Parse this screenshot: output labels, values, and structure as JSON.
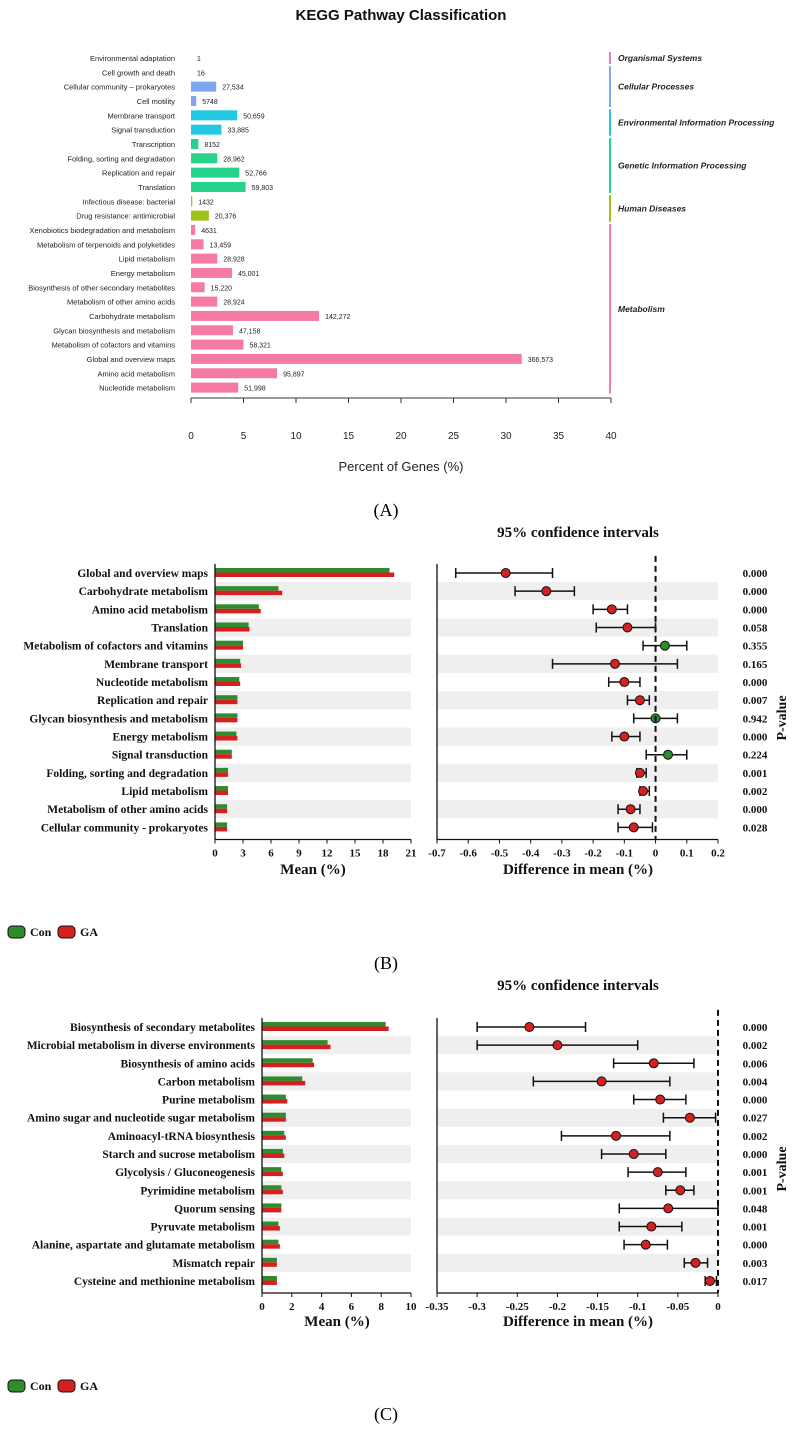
{
  "panels": {
    "a": "(A)",
    "b": "(B)",
    "c": "(C)"
  },
  "legend": {
    "con": "Con",
    "ga": "GA",
    "con_color": "#2e8b2e",
    "ga_color": "#d42020"
  },
  "chart_data": [
    {
      "type": "bar",
      "orientation": "horizontal",
      "title": "KEGG Pathway Classification",
      "xlabel": "Percent of Genes (%)",
      "xlim": [
        0,
        40
      ],
      "xticks": [
        0,
        5,
        10,
        15,
        20,
        25,
        30,
        35,
        40
      ],
      "groups": [
        {
          "name": "Organismal Systems",
          "color": "#e07fd8"
        },
        {
          "name": "Cellular Processes",
          "color": "#7ea7f2"
        },
        {
          "name": "Environmental Information Processing",
          "color": "#22c8e0"
        },
        {
          "name": "Genetic Information Processing",
          "color": "#25d38a"
        },
        {
          "name": "Human Diseases",
          "color": "#9cc21a"
        },
        {
          "name": "Metabolism",
          "color": "#f57ba6"
        }
      ],
      "categories": [
        {
          "label": "Environmental adaptation",
          "group": 0,
          "percent": 0.0,
          "count": "1"
        },
        {
          "label": "Cell growth and death",
          "group": 1,
          "percent": 0.0,
          "count": "16"
        },
        {
          "label": "Cellular community – prokaryotes",
          "group": 1,
          "percent": 2.4,
          "count": "27,534"
        },
        {
          "label": "Cell motility",
          "group": 1,
          "percent": 0.5,
          "count": "5748"
        },
        {
          "label": "Membrane transport",
          "group": 2,
          "percent": 4.4,
          "count": "50,659"
        },
        {
          "label": "Signal transduction",
          "group": 2,
          "percent": 2.9,
          "count": "33,885"
        },
        {
          "label": "Transcription",
          "group": 3,
          "percent": 0.7,
          "count": "8152"
        },
        {
          "label": "Folding, sorting and degradation",
          "group": 3,
          "percent": 2.5,
          "count": "28,962"
        },
        {
          "label": "Replication and repair",
          "group": 3,
          "percent": 4.6,
          "count": "52,766"
        },
        {
          "label": "Translation",
          "group": 3,
          "percent": 5.2,
          "count": "59,803"
        },
        {
          "label": "Infectious disease: bacterial",
          "group": 4,
          "percent": 0.12,
          "count": "1432"
        },
        {
          "label": "Drug resistance: antimicrobial",
          "group": 4,
          "percent": 1.7,
          "count": "20,376"
        },
        {
          "label": "Xenobiotics biodegradation and metabolism",
          "group": 5,
          "percent": 0.4,
          "count": "4631"
        },
        {
          "label": "Metabolism of terpenoids and polyketides",
          "group": 5,
          "percent": 1.2,
          "count": "13,459"
        },
        {
          "label": "Lipid metabolism",
          "group": 5,
          "percent": 2.5,
          "count": "28,928"
        },
        {
          "label": "Energy metabolism",
          "group": 5,
          "percent": 3.9,
          "count": "45,001"
        },
        {
          "label": "Biosynthesis of other secondary metabolites",
          "group": 5,
          "percent": 1.3,
          "count": "15,220"
        },
        {
          "label": "Metabolism of other amino acids",
          "group": 5,
          "percent": 2.5,
          "count": "28,924"
        },
        {
          "label": "Carbohydrate metabolism",
          "group": 5,
          "percent": 12.2,
          "count": "142,272"
        },
        {
          "label": "Glycan biosynthesis and metabolism",
          "group": 5,
          "percent": 4.0,
          "count": "47,158"
        },
        {
          "label": "Metabolism of cofactors and vitamins",
          "group": 5,
          "percent": 5.0,
          "count": "58,321"
        },
        {
          "label": "Global and overview maps",
          "group": 5,
          "percent": 31.5,
          "count": "366,573"
        },
        {
          "label": "Amino acid metabolism",
          "group": 5,
          "percent": 8.2,
          "count": "95,897"
        },
        {
          "label": "Nucleotide metabolism",
          "group": 5,
          "percent": 4.5,
          "count": "51,998"
        }
      ]
    },
    {
      "type": "bar+errorbar",
      "ci_title": "95% confidence intervals",
      "xlabel_left": "Mean (%)",
      "xlabel_right": "Difference in mean (%)",
      "pvalue_label": "P-value",
      "left_xlim": [
        0,
        21
      ],
      "left_ticks": [
        "0",
        "3",
        "6",
        "9",
        "12",
        "15",
        "18",
        "21"
      ],
      "right_xlim": [
        -0.7,
        0.2
      ],
      "right_ticks": [
        "-0.7",
        "-0.6",
        "-0.5",
        "-0.4",
        "-0.3",
        "-0.2",
        "-0.1",
        "0",
        "0.1",
        "0.2"
      ],
      "rows": [
        {
          "label": "Global and overview maps",
          "con": 18.7,
          "ga": 19.2,
          "diff": -0.48,
          "lo": -0.64,
          "hi": -0.33,
          "p": "0.000"
        },
        {
          "label": "Carbohydrate metabolism",
          "con": 6.8,
          "ga": 7.2,
          "diff": -0.35,
          "lo": -0.45,
          "hi": -0.26,
          "p": "0.000"
        },
        {
          "label": "Amino acid metabolism",
          "con": 4.7,
          "ga": 4.9,
          "diff": -0.14,
          "lo": -0.2,
          "hi": -0.09,
          "p": "0.000"
        },
        {
          "label": "Translation",
          "con": 3.6,
          "ga": 3.7,
          "diff": -0.09,
          "lo": -0.19,
          "hi": 0.0,
          "p": "0.058"
        },
        {
          "label": "Metabolism of cofactors and vitamins",
          "con": 3.0,
          "ga": 3.0,
          "diff": 0.03,
          "lo": -0.04,
          "hi": 0.1,
          "p": "0.355"
        },
        {
          "label": "Membrane transport",
          "con": 2.7,
          "ga": 2.8,
          "diff": -0.13,
          "lo": -0.33,
          "hi": 0.07,
          "p": "0.165"
        },
        {
          "label": "Nucleotide metabolism",
          "con": 2.6,
          "ga": 2.7,
          "diff": -0.1,
          "lo": -0.15,
          "hi": -0.05,
          "p": "0.000"
        },
        {
          "label": "Replication and repair",
          "con": 2.4,
          "ga": 2.4,
          "diff": -0.05,
          "lo": -0.09,
          "hi": -0.02,
          "p": "0.007"
        },
        {
          "label": "Glycan biosynthesis and metabolism",
          "con": 2.4,
          "ga": 2.4,
          "diff": 0.0,
          "lo": -0.07,
          "hi": 0.07,
          "p": "0.942"
        },
        {
          "label": "Energy metabolism",
          "con": 2.3,
          "ga": 2.4,
          "diff": -0.1,
          "lo": -0.14,
          "hi": -0.05,
          "p": "0.000"
        },
        {
          "label": "Signal transduction",
          "con": 1.8,
          "ga": 1.8,
          "diff": 0.04,
          "lo": -0.03,
          "hi": 0.1,
          "p": "0.224"
        },
        {
          "label": "Folding, sorting and degradation",
          "con": 1.4,
          "ga": 1.4,
          "diff": -0.05,
          "lo": -0.06,
          "hi": -0.03,
          "p": "0.001"
        },
        {
          "label": "Lipid metabolism",
          "con": 1.4,
          "ga": 1.4,
          "diff": -0.04,
          "lo": -0.05,
          "hi": -0.02,
          "p": "0.002"
        },
        {
          "label": "Metabolism of other amino acids",
          "con": 1.3,
          "ga": 1.3,
          "diff": -0.08,
          "lo": -0.12,
          "hi": -0.05,
          "p": "0.000"
        },
        {
          "label": "Cellular community - prokaryotes",
          "con": 1.3,
          "ga": 1.3,
          "diff": -0.07,
          "lo": -0.12,
          "hi": -0.01,
          "p": "0.028"
        }
      ]
    },
    {
      "type": "bar+errorbar",
      "ci_title": "95% confidence intervals",
      "xlabel_left": "Mean (%)",
      "xlabel_right": "Difference in mean (%)",
      "pvalue_label": "P-value",
      "left_xlim": [
        0,
        10
      ],
      "left_ticks": [
        "0",
        "2",
        "4",
        "6",
        "8",
        "10"
      ],
      "right_xlim": [
        -0.35,
        0
      ],
      "right_ticks": [
        "-0.35",
        "-0.3",
        "-0.25",
        "-0.2",
        "-0.15",
        "-0.1",
        "-0.05",
        "0"
      ],
      "rows": [
        {
          "label": "Biosynthesis of secondary metabolites",
          "con": 8.3,
          "ga": 8.5,
          "diff": -0.235,
          "lo": -0.3,
          "hi": -0.165,
          "p": "0.000"
        },
        {
          "label": "Microbial metabolism in diverse environments",
          "con": 4.4,
          "ga": 4.6,
          "diff": -0.2,
          "lo": -0.3,
          "hi": -0.1,
          "p": "0.002"
        },
        {
          "label": "Biosynthesis of amino acids",
          "con": 3.4,
          "ga": 3.5,
          "diff": -0.08,
          "lo": -0.13,
          "hi": -0.03,
          "p": "0.006"
        },
        {
          "label": "Carbon metabolism",
          "con": 2.7,
          "ga": 2.9,
          "diff": -0.145,
          "lo": -0.23,
          "hi": -0.06,
          "p": "0.004"
        },
        {
          "label": "Purine metabolism",
          "con": 1.6,
          "ga": 1.7,
          "diff": -0.072,
          "lo": -0.105,
          "hi": -0.04,
          "p": "0.000"
        },
        {
          "label": "Amino sugar and nucleotide sugar metabolism",
          "con": 1.6,
          "ga": 1.6,
          "diff": -0.035,
          "lo": -0.068,
          "hi": -0.003,
          "p": "0.027"
        },
        {
          "label": "Aminoacyl-tRNA biosynthesis",
          "con": 1.5,
          "ga": 1.6,
          "diff": -0.127,
          "lo": -0.195,
          "hi": -0.06,
          "p": "0.002"
        },
        {
          "label": "Starch and sucrose metabolism",
          "con": 1.4,
          "ga": 1.5,
          "diff": -0.105,
          "lo": -0.145,
          "hi": -0.065,
          "p": "0.000"
        },
        {
          "label": "Glycolysis / Gluconeogenesis",
          "con": 1.3,
          "ga": 1.4,
          "diff": -0.075,
          "lo": -0.112,
          "hi": -0.04,
          "p": "0.001"
        },
        {
          "label": "Pyrimidine metabolism",
          "con": 1.3,
          "ga": 1.4,
          "diff": -0.047,
          "lo": -0.065,
          "hi": -0.03,
          "p": "0.001"
        },
        {
          "label": "Quorum sensing",
          "con": 1.3,
          "ga": 1.3,
          "diff": -0.062,
          "lo": -0.123,
          "hi": 0.0,
          "p": "0.048"
        },
        {
          "label": "Pyruvate metabolism",
          "con": 1.1,
          "ga": 1.2,
          "diff": -0.083,
          "lo": -0.123,
          "hi": -0.045,
          "p": "0.001"
        },
        {
          "label": "Alanine, aspartate and glutamate metabolism",
          "con": 1.1,
          "ga": 1.2,
          "diff": -0.09,
          "lo": -0.117,
          "hi": -0.063,
          "p": "0.000"
        },
        {
          "label": "Mismatch repair",
          "con": 1.0,
          "ga": 1.0,
          "diff": -0.028,
          "lo": -0.042,
          "hi": -0.013,
          "p": "0.003"
        },
        {
          "label": "Cysteine and methionine metabolism",
          "con": 1.0,
          "ga": 1.0,
          "diff": -0.01,
          "lo": -0.016,
          "hi": -0.002,
          "p": "0.017"
        }
      ]
    }
  ]
}
